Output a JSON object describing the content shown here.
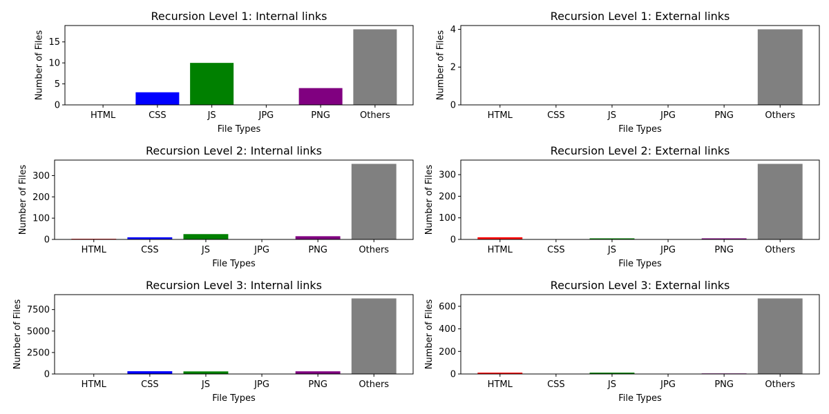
{
  "colors": {
    "HTML": "#ff0000",
    "CSS": "#0000ff",
    "JS": "#008000",
    "JPG": "#ffa500",
    "PNG": "#800080",
    "Others": "#808080"
  },
  "chart_data": [
    {
      "type": "bar",
      "title": "Recursion Level 1: Internal links",
      "xlabel": "File Types",
      "ylabel": "Number of Files",
      "categories": [
        "HTML",
        "CSS",
        "JS",
        "JPG",
        "PNG",
        "Others"
      ],
      "values": [
        0,
        3,
        10,
        0,
        4,
        18
      ],
      "ylim": [
        0,
        18.9
      ],
      "yticks": [
        0,
        5,
        10,
        15
      ]
    },
    {
      "type": "bar",
      "title": "Recursion Level 1: External links",
      "xlabel": "File Types",
      "ylabel": "Number of Files",
      "categories": [
        "HTML",
        "CSS",
        "JS",
        "JPG",
        "PNG",
        "Others"
      ],
      "values": [
        0,
        0,
        0,
        0,
        0,
        4
      ],
      "ylim": [
        0,
        4.2
      ],
      "yticks": [
        0,
        2,
        4
      ]
    },
    {
      "type": "bar",
      "title": "Recursion Level 2: Internal links",
      "xlabel": "File Types",
      "ylabel": "Number of Files",
      "categories": [
        "HTML",
        "CSS",
        "JS",
        "JPG",
        "PNG",
        "Others"
      ],
      "values": [
        3,
        10,
        25,
        0,
        15,
        355
      ],
      "ylim": [
        0,
        372.75
      ],
      "yticks": [
        0,
        100,
        200,
        300
      ]
    },
    {
      "type": "bar",
      "title": "Recursion Level 2: External links",
      "xlabel": "File Types",
      "ylabel": "Number of Files",
      "categories": [
        "HTML",
        "CSS",
        "JS",
        "JPG",
        "PNG",
        "Others"
      ],
      "values": [
        10,
        0,
        5,
        0,
        5,
        350
      ],
      "ylim": [
        0,
        367.5
      ],
      "yticks": [
        0,
        100,
        200,
        300
      ]
    },
    {
      "type": "bar",
      "title": "Recursion Level 3: Internal links",
      "xlabel": "File Types",
      "ylabel": "Number of Files",
      "categories": [
        "HTML",
        "CSS",
        "JS",
        "JPG",
        "PNG",
        "Others"
      ],
      "values": [
        0,
        320,
        300,
        0,
        310,
        8800
      ],
      "ylim": [
        0,
        9240
      ],
      "yticks": [
        0,
        2500,
        5000,
        7500
      ]
    },
    {
      "type": "bar",
      "title": "Recursion Level 3: External links",
      "xlabel": "File Types",
      "ylabel": "Number of Files",
      "categories": [
        "HTML",
        "CSS",
        "JS",
        "JPG",
        "PNG",
        "Others"
      ],
      "values": [
        12,
        0,
        12,
        0,
        5,
        670
      ],
      "ylim": [
        0,
        703.5
      ],
      "yticks": [
        0,
        200,
        400,
        600
      ]
    }
  ]
}
